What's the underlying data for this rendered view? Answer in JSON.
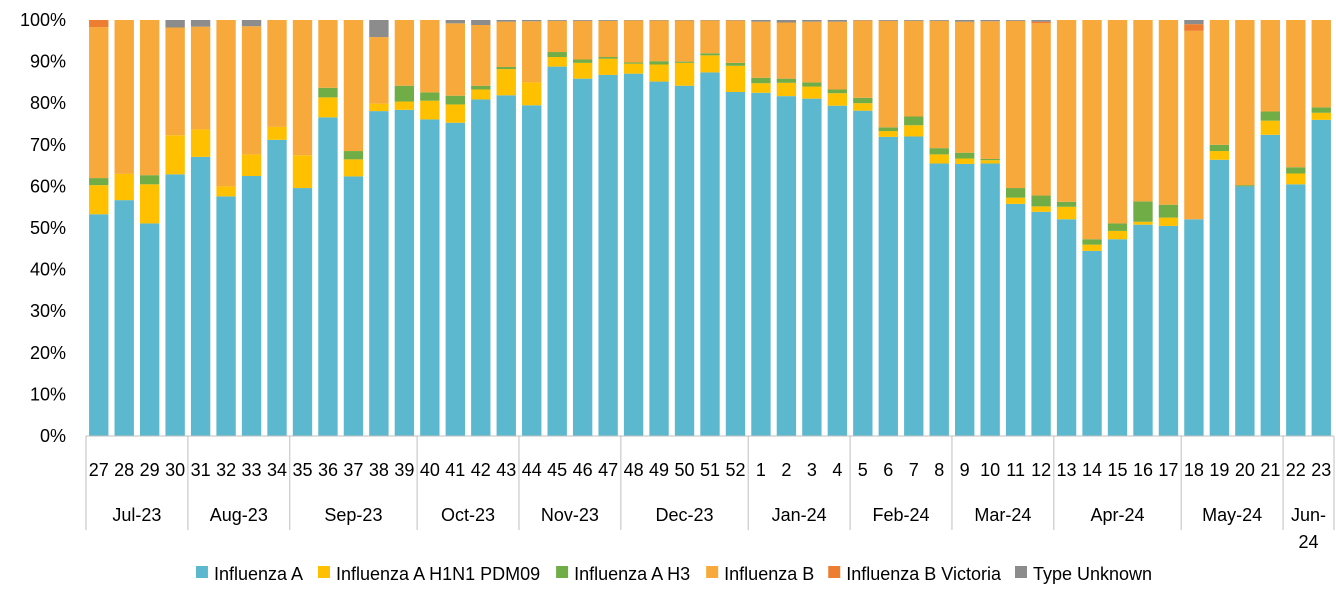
{
  "chart_data": {
    "type": "bar",
    "stacked": true,
    "normalized": true,
    "title": "",
    "xlabel": "",
    "ylabel": "",
    "ylim": [
      0,
      100
    ],
    "y_ticks": [
      "0%",
      "10%",
      "20%",
      "30%",
      "40%",
      "50%",
      "60%",
      "70%",
      "80%",
      "90%",
      "100%"
    ],
    "grid": false,
    "legend_position": "bottom",
    "categories": [
      "27",
      "28",
      "29",
      "30",
      "31",
      "32",
      "33",
      "34",
      "35",
      "36",
      "37",
      "38",
      "39",
      "40",
      "41",
      "42",
      "43",
      "44",
      "45",
      "46",
      "47",
      "48",
      "49",
      "50",
      "51",
      "52",
      "1",
      "2",
      "3",
      "4",
      "5",
      "6",
      "7",
      "8",
      "9",
      "10",
      "11",
      "12",
      "13",
      "14",
      "15",
      "16",
      "17",
      "18",
      "19",
      "20",
      "21",
      "22",
      "23"
    ],
    "months": [
      {
        "label": "Jul-23",
        "start": 0,
        "count": 4
      },
      {
        "label": "Aug-23",
        "start": 4,
        "count": 4
      },
      {
        "label": "Sep-23",
        "start": 8,
        "count": 5
      },
      {
        "label": "Oct-23",
        "start": 13,
        "count": 4
      },
      {
        "label": "Nov-23",
        "start": 17,
        "count": 4
      },
      {
        "label": "Dec-23",
        "start": 21,
        "count": 5
      },
      {
        "label": "Jan-24",
        "start": 26,
        "count": 4
      },
      {
        "label": "Feb-24",
        "start": 30,
        "count": 4
      },
      {
        "label": "Mar-24",
        "start": 34,
        "count": 4
      },
      {
        "label": "Apr-24",
        "start": 38,
        "count": 5
      },
      {
        "label": "May-24",
        "start": 43,
        "count": 4
      },
      {
        "label": "Jun-24",
        "start": 47,
        "count": 2
      }
    ],
    "series": [
      {
        "name": "Influenza A",
        "color": "#5BB8CF",
        "values": [
          53.3,
          56.7,
          51.1,
          62.9,
          67.1,
          57.6,
          62.5,
          71.2,
          59.6,
          76.6,
          62.4,
          78.1,
          78.4,
          76.1,
          75.3,
          80.9,
          81.9,
          79.5,
          88.8,
          85.9,
          86.8,
          87.1,
          85.2,
          84.2,
          87.4,
          82.7,
          82.5,
          81.7,
          81.1,
          79.4,
          78.2,
          71.9,
          72.0,
          65.5,
          65.4,
          65.5,
          55.8,
          53.9,
          52.1,
          44.5,
          47.3,
          50.8,
          50.5,
          52.1,
          66.4,
          60.0,
          72.4,
          60.5,
          76.0
        ]
      },
      {
        "name": "Influenza A H1N1 PDM09",
        "color": "#FFC000",
        "values": [
          7.0,
          6.3,
          9.4,
          9.4,
          6.6,
          2.4,
          5.2,
          3.1,
          7.9,
          4.8,
          4.1,
          1.8,
          2.0,
          4.5,
          4.4,
          2.4,
          6.3,
          5.5,
          2.3,
          3.8,
          3.9,
          2.4,
          4.1,
          5.5,
          4.1,
          6.3,
          2.3,
          3.2,
          2.9,
          3.0,
          1.8,
          1.4,
          2.7,
          2.2,
          1.3,
          0.8,
          1.5,
          1.3,
          3.0,
          1.5,
          2.0,
          0.7,
          2.0,
          0.0,
          2.1,
          0.0,
          3.4,
          2.6,
          1.7
        ]
      },
      {
        "name": "Influenza A H3",
        "color": "#70AD47",
        "values": [
          1.7,
          0.0,
          2.2,
          0.0,
          0.0,
          0.0,
          0.0,
          0.0,
          0.0,
          2.3,
          2.0,
          0.0,
          3.8,
          2.0,
          2.1,
          0.9,
          0.5,
          0.0,
          1.2,
          0.8,
          0.4,
          0.3,
          0.8,
          0.3,
          0.5,
          0.7,
          1.3,
          1.0,
          1.0,
          0.9,
          1.3,
          0.9,
          2.1,
          1.5,
          1.4,
          0.3,
          2.3,
          2.6,
          1.2,
          1.3,
          1.8,
          4.9,
          3.1,
          0.0,
          1.5,
          0.3,
          2.2,
          1.5,
          1.3
        ]
      },
      {
        "name": "Influenza B",
        "color": "#F7A93B",
        "values": [
          36.3,
          37.0,
          37.3,
          25.9,
          24.7,
          40.0,
          30.8,
          25.7,
          32.5,
          16.3,
          31.5,
          16.0,
          15.8,
          17.4,
          17.4,
          14.6,
          10.9,
          14.7,
          7.5,
          9.3,
          8.7,
          10.1,
          9.8,
          9.9,
          7.9,
          10.2,
          13.5,
          13.5,
          14.6,
          16.3,
          18.6,
          25.6,
          23.0,
          30.6,
          31.5,
          33.1,
          40.2,
          41.4,
          43.7,
          52.7,
          48.9,
          43.6,
          44.4,
          45.3,
          30.0,
          39.7,
          22.0,
          35.4,
          21.0
        ]
      },
      {
        "name": "Influenza B Victoria",
        "color": "#ED7D31",
        "values": [
          1.7,
          0.0,
          0.0,
          0.0,
          0.0,
          0.0,
          0.0,
          0.0,
          0.0,
          0.0,
          0.0,
          0.0,
          0.0,
          0.0,
          0.0,
          0.0,
          0.0,
          0.0,
          0.0,
          0.0,
          0.0,
          0.0,
          0.0,
          0.0,
          0.0,
          0.0,
          0.0,
          0.0,
          0.0,
          0.0,
          0.0,
          0.0,
          0.0,
          0.0,
          0.0,
          0.0,
          0.0,
          0.4,
          0.0,
          0.0,
          0.0,
          0.0,
          0.0,
          1.6,
          0.0,
          0.0,
          0.0,
          0.0,
          0.0
        ]
      },
      {
        "name": "Type Unknown",
        "color": "#8C8C8C",
        "values": [
          0.0,
          0.0,
          0.0,
          1.8,
          1.6,
          0.0,
          1.5,
          0.0,
          0.0,
          0.0,
          0.0,
          4.1,
          0.0,
          0.0,
          0.8,
          1.2,
          0.4,
          0.3,
          0.2,
          0.2,
          0.2,
          0.1,
          0.1,
          0.1,
          0.1,
          0.1,
          0.4,
          0.6,
          0.4,
          0.4,
          0.1,
          0.2,
          0.2,
          0.2,
          0.4,
          0.3,
          0.2,
          0.4,
          0.0,
          0.0,
          0.0,
          0.0,
          0.0,
          1.0,
          0.0,
          0.0,
          0.0,
          0.0,
          0.0
        ]
      }
    ]
  }
}
